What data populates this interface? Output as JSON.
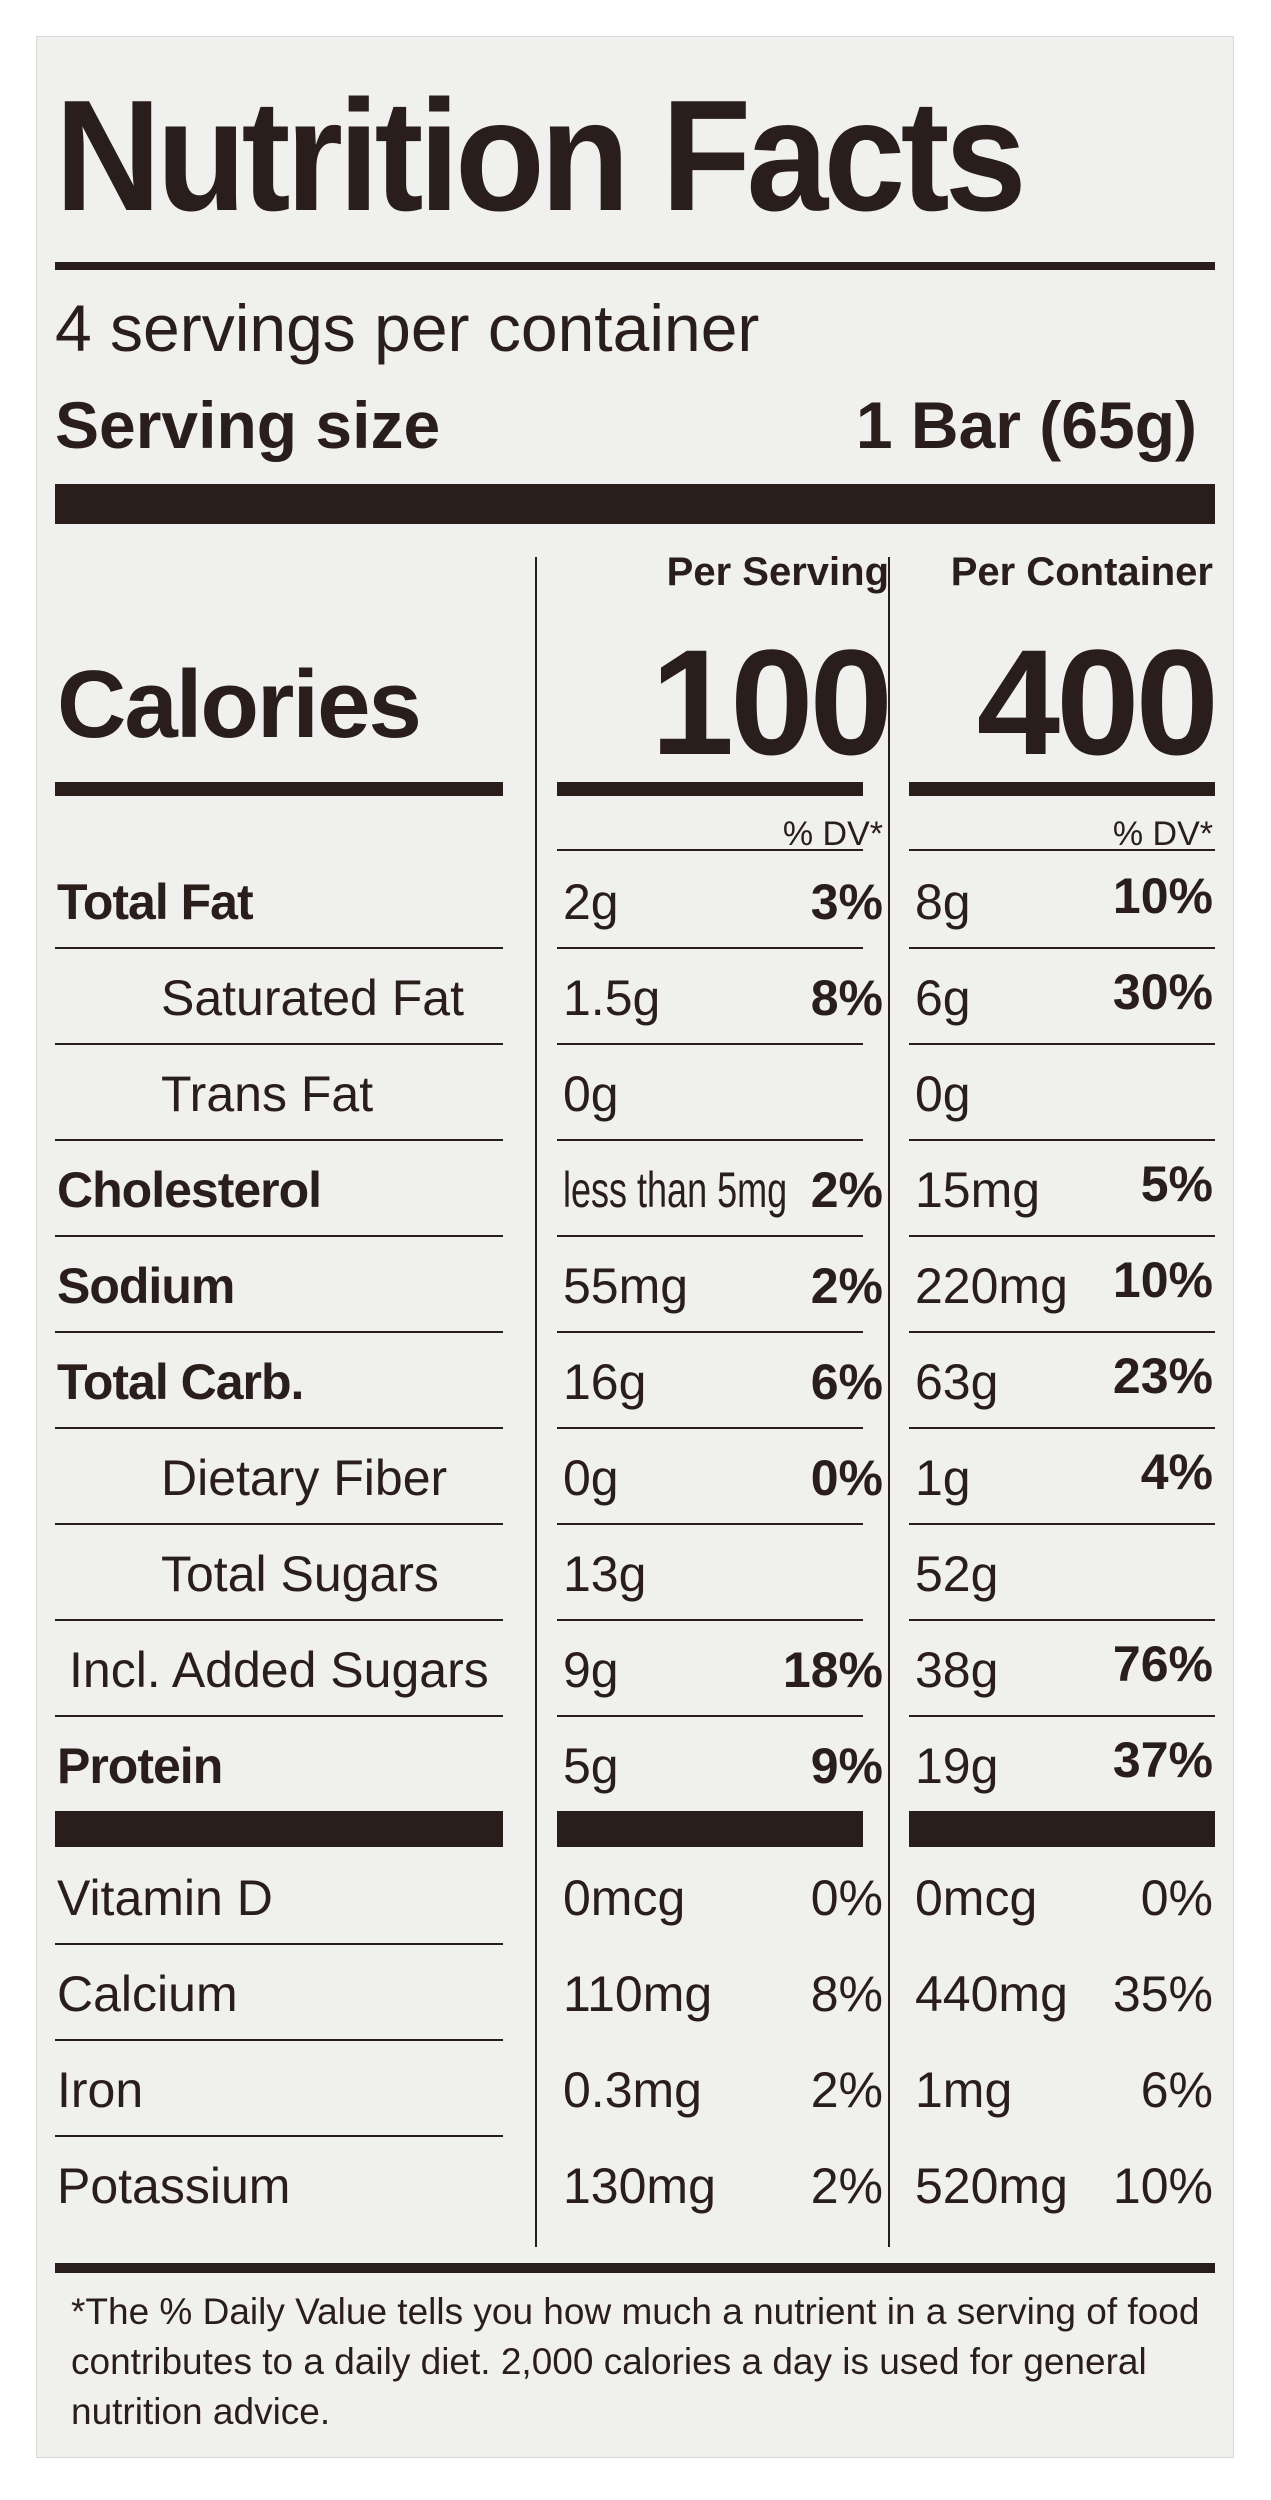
{
  "title": "Nutrition Facts",
  "servings_per_container": "4 servings per container",
  "serving_size_label": "Serving size",
  "serving_size_value": "1 Bar (65g)",
  "col_headers": {
    "per_serving": "Per Serving",
    "per_container": "Per Container"
  },
  "calories_label": "Calories",
  "calories_per_serving": "100",
  "calories_per_container": "400",
  "dv_header": "% DV*",
  "nutrients": [
    {
      "label": "Total Fat",
      "bold": true,
      "indent": 0,
      "s_amt": "2g",
      "s_dv": "3%",
      "c_amt": "8g",
      "c_dv": "10%"
    },
    {
      "label": "Saturated Fat",
      "bold": false,
      "indent": 1,
      "s_amt": "1.5g",
      "s_dv": "8%",
      "c_amt": "6g",
      "c_dv": "30%"
    },
    {
      "label": "Trans Fat",
      "bold": false,
      "indent": 1,
      "s_amt": "0g",
      "s_dv": "",
      "c_amt": "0g",
      "c_dv": ""
    },
    {
      "label": "Cholesterol",
      "bold": true,
      "indent": 0,
      "s_amt": "less than 5mg",
      "s_dv": "2%",
      "c_amt": "15mg",
      "c_dv": "5%"
    },
    {
      "label": "Sodium",
      "bold": true,
      "indent": 0,
      "s_amt": "55mg",
      "s_dv": "2%",
      "c_amt": "220mg",
      "c_dv": "10%"
    },
    {
      "label": "Total Carb.",
      "bold": true,
      "indent": 0,
      "s_amt": "16g",
      "s_dv": "6%",
      "c_amt": "63g",
      "c_dv": "23%"
    },
    {
      "label": "Dietary Fiber",
      "bold": false,
      "indent": 1,
      "s_amt": "0g",
      "s_dv": "0%",
      "c_amt": "1g",
      "c_dv": "4%"
    },
    {
      "label": "Total Sugars",
      "bold": false,
      "indent": 1,
      "s_amt": "13g",
      "s_dv": "",
      "c_amt": "52g",
      "c_dv": ""
    },
    {
      "label": "Incl. Added Sugars",
      "bold": false,
      "indent": 2,
      "s_amt": "9g",
      "s_dv": "18%",
      "c_amt": "38g",
      "c_dv": "76%"
    },
    {
      "label": "Protein",
      "bold": true,
      "indent": 0,
      "s_amt": "5g",
      "s_dv": "9%",
      "c_amt": "19g",
      "c_dv": "37%"
    }
  ],
  "vitamins": [
    {
      "label": "Vitamin D",
      "s_amt": "0mcg",
      "s_dv": "0%",
      "c_amt": "0mcg",
      "c_dv": "0%"
    },
    {
      "label": "Calcium",
      "s_amt": "110mg",
      "s_dv": "8%",
      "c_amt": "440mg",
      "c_dv": "35%"
    },
    {
      "label": "Iron",
      "s_amt": "0.3mg",
      "s_dv": "2%",
      "c_amt": "1mg",
      "c_dv": "6%"
    },
    {
      "label": "Potassium",
      "s_amt": "130mg",
      "s_dv": "2%",
      "c_amt": "520mg",
      "c_dv": "10%"
    }
  ],
  "footnote": "*The % Daily Value tells you how much a nutrient in a serving of food contributes to a daily diet. 2,000 calories a day is used for general nutrition advice.",
  "colors": {
    "ink": "#2a1e1c",
    "panel": "#f0f0ee"
  }
}
